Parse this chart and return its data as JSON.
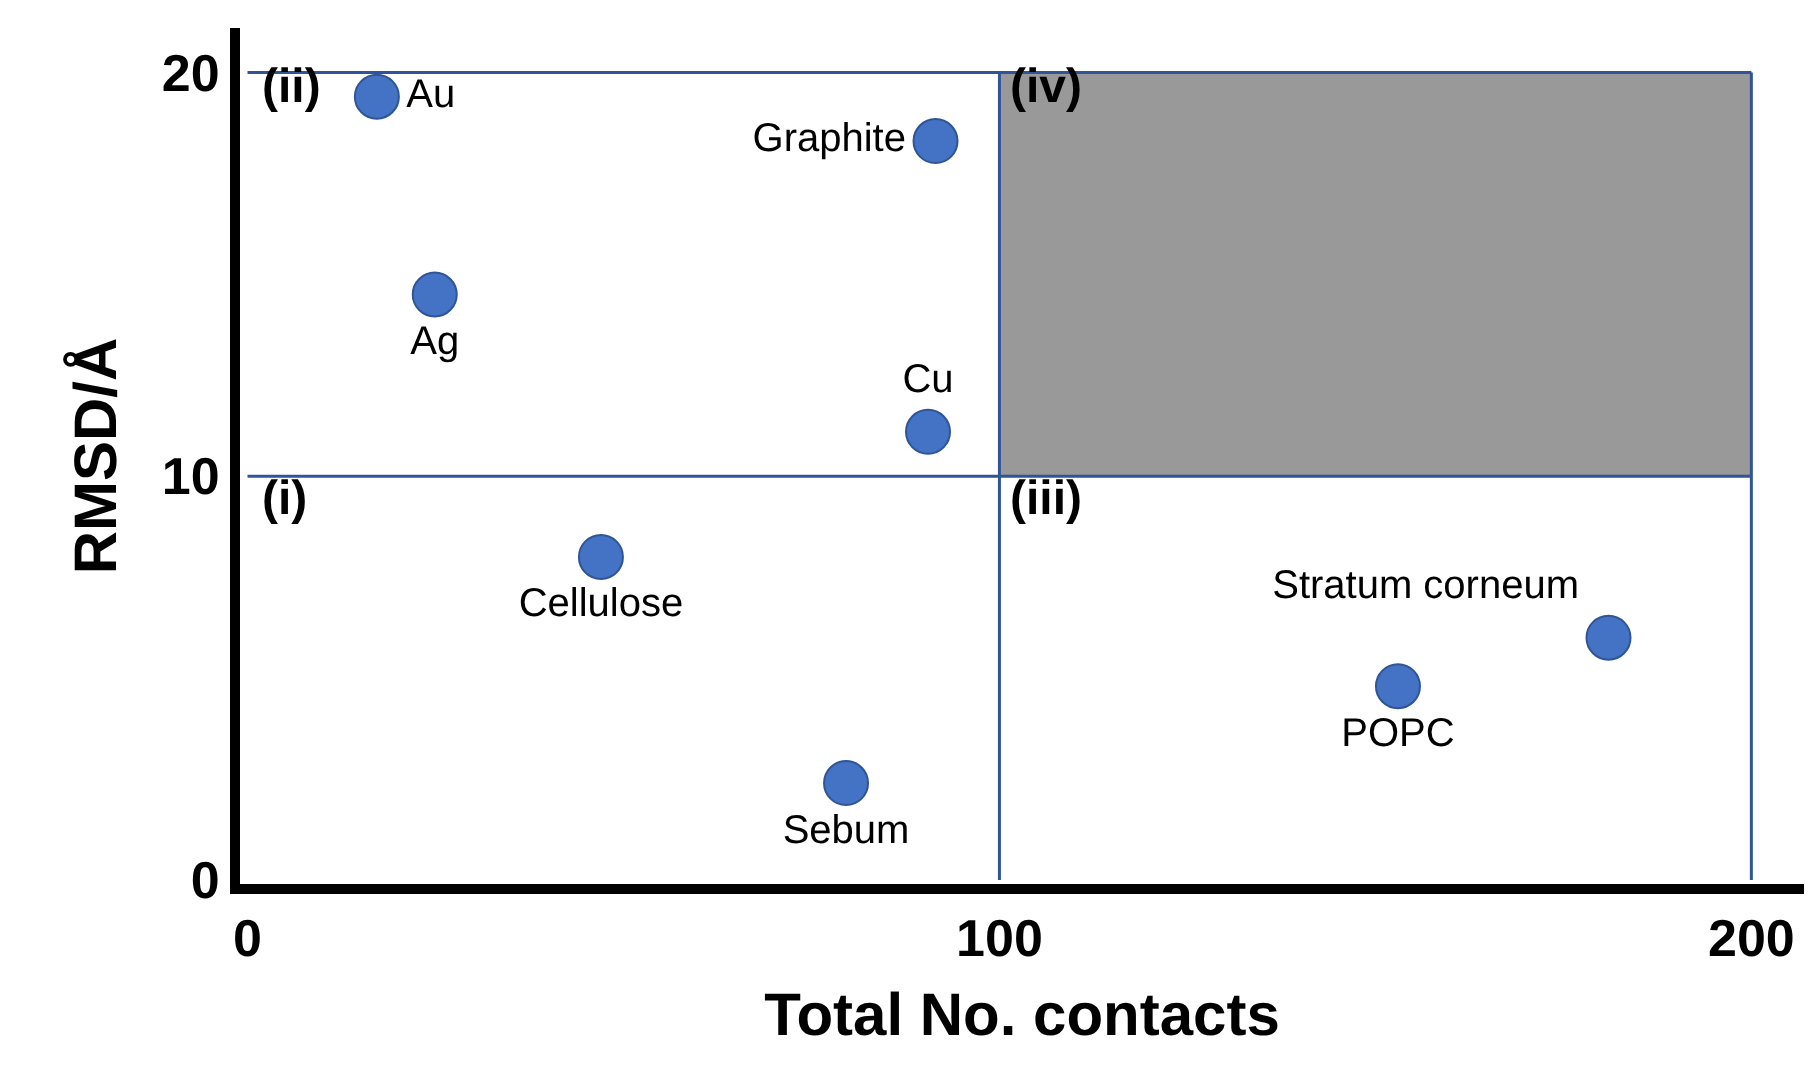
{
  "chart_data": {
    "type": "scatter",
    "xlabel": "Total No. contacts",
    "ylabel": "RMSD/Å",
    "x": [
      17.2,
      24.9,
      91.5,
      90.5,
      47,
      79.6,
      153,
      181
    ],
    "values": [
      19.4,
      14.5,
      18.3,
      11.1,
      8.0,
      2.4,
      4.8,
      6.0
    ],
    "value_labels": [
      "Au",
      "Ag",
      "Graphite",
      "Cu",
      "Cellulose",
      "Sebum",
      "POPC",
      "Stratum corneum"
    ],
    "color": "#4472c4",
    "marker": "circle",
    "xlim": [
      -1,
      207
    ],
    "ylim": [
      -0.1,
      21.1
    ],
    "xticks": [
      0,
      100,
      200
    ],
    "yticks": [
      0,
      10,
      20
    ],
    "grid": false,
    "ref_lines": [
      {
        "axis": "x",
        "value": 100,
        "color": "#2f5597"
      },
      {
        "axis": "x",
        "value": 200,
        "color": "#2f5597"
      },
      {
        "axis": "y",
        "value": 10,
        "color": "#2f5597"
      },
      {
        "axis": "y",
        "value": 20,
        "color": "#2f5597"
      }
    ],
    "bands": [
      {
        "axis": "x",
        "from": 100,
        "to": 200,
        "color": "#999999"
      }
    ],
    "annotations": [
      "(i)",
      "(ii)",
      "(iii)",
      "(iv)"
    ]
  }
}
